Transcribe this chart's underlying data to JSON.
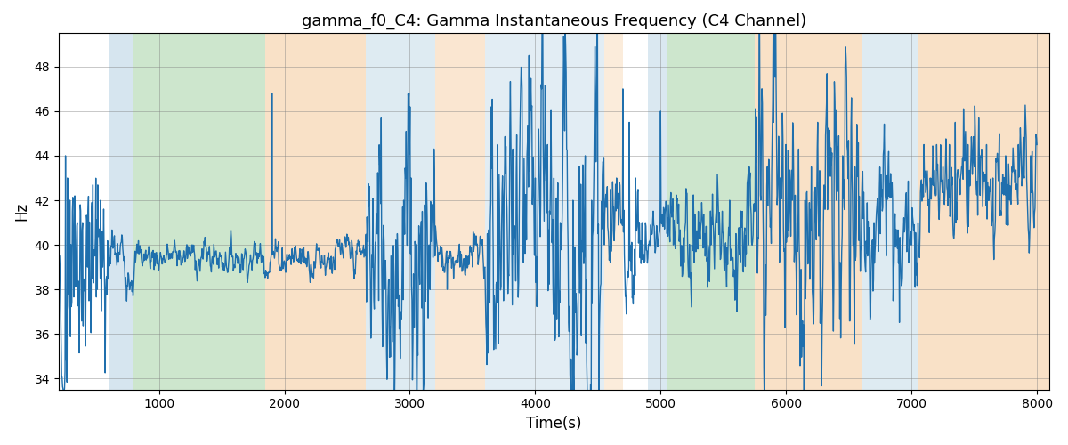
{
  "title": "gamma_f0_C4: Gamma Instantaneous Frequency (C4 Channel)",
  "xlabel": "Time(s)",
  "ylabel": "Hz",
  "xlim": [
    200,
    8100
  ],
  "ylim": [
    33.5,
    49.5
  ],
  "yticks": [
    34,
    36,
    38,
    40,
    42,
    44,
    46,
    48
  ],
  "xticks": [
    1000,
    2000,
    3000,
    4000,
    5000,
    6000,
    7000,
    8000
  ],
  "line_color": "#1f6fad",
  "line_width": 1.0,
  "bg_color": "#ffffff",
  "bands": [
    {
      "xmin": 600,
      "xmax": 800,
      "color": "#aecde0",
      "alpha": 0.5
    },
    {
      "xmin": 800,
      "xmax": 1850,
      "color": "#90c990",
      "alpha": 0.45
    },
    {
      "xmin": 1850,
      "xmax": 2650,
      "color": "#f5c99a",
      "alpha": 0.55
    },
    {
      "xmin": 2650,
      "xmax": 3200,
      "color": "#aecde0",
      "alpha": 0.4
    },
    {
      "xmin": 3200,
      "xmax": 3600,
      "color": "#f5c99a",
      "alpha": 0.45
    },
    {
      "xmin": 3600,
      "xmax": 4550,
      "color": "#aecde0",
      "alpha": 0.35
    },
    {
      "xmin": 4550,
      "xmax": 4700,
      "color": "#f5c99a",
      "alpha": 0.35
    },
    {
      "xmin": 4900,
      "xmax": 5050,
      "color": "#aecde0",
      "alpha": 0.45
    },
    {
      "xmin": 5050,
      "xmax": 5750,
      "color": "#90c990",
      "alpha": 0.45
    },
    {
      "xmin": 5750,
      "xmax": 6600,
      "color": "#f5c99a",
      "alpha": 0.55
    },
    {
      "xmin": 6600,
      "xmax": 7050,
      "color": "#aecde0",
      "alpha": 0.4
    },
    {
      "xmin": 7050,
      "xmax": 8100,
      "color": "#f5c99a",
      "alpha": 0.55
    }
  ]
}
